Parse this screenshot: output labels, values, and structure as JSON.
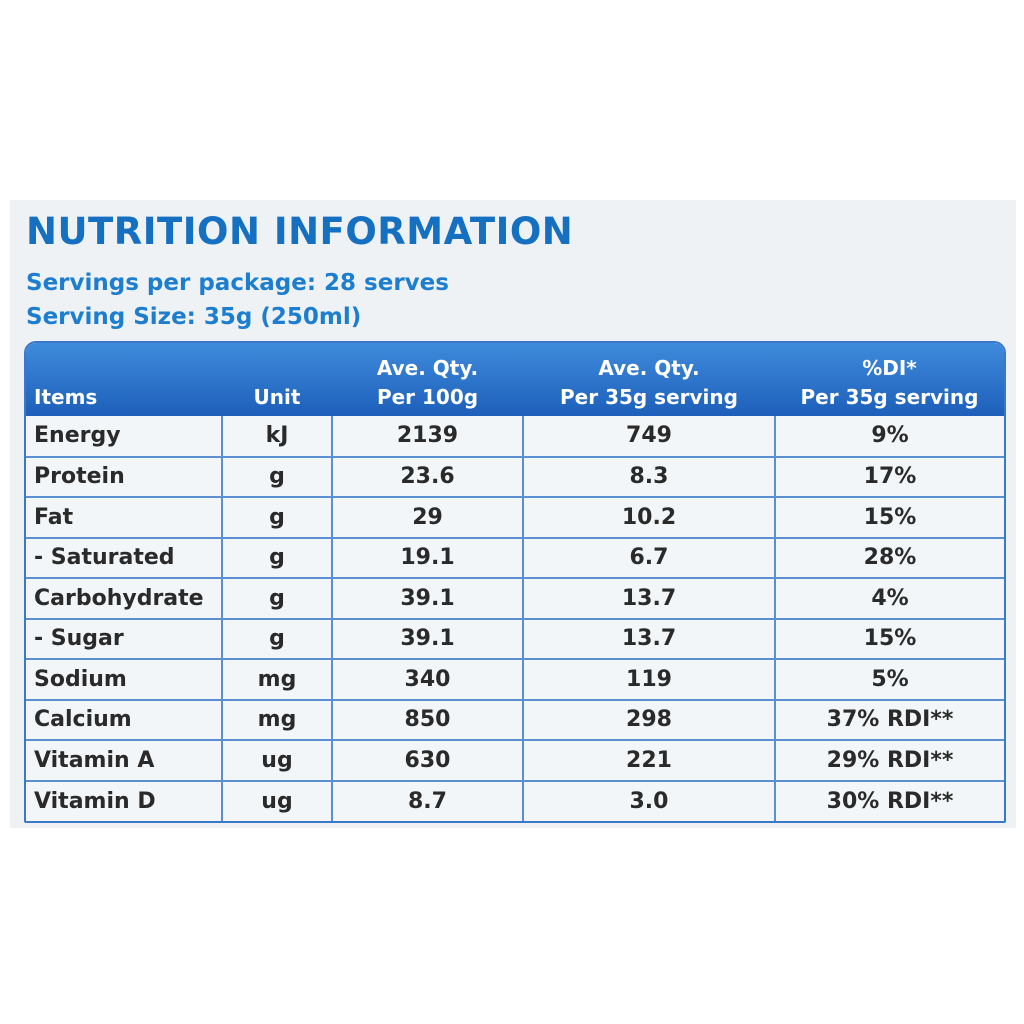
{
  "title": "NUTRITION INFORMATION",
  "servings_per_package": "Servings per package: 28 serves",
  "serving_size": "Serving Size: 35g (250ml)",
  "table": {
    "headers": {
      "items": "Items",
      "unit": "Unit",
      "per100_line1": "Ave. Qty.",
      "per100_line2": "Per 100g",
      "perserv_line1": "Ave. Qty.",
      "perserv_line2": "Per 35g serving",
      "di_line1": "%DI*",
      "di_line2": "Per 35g serving"
    },
    "rows": [
      {
        "item": "Energy",
        "unit": "kJ",
        "per100": "2139",
        "perserv": "749",
        "di": "9%"
      },
      {
        "item": "Protein",
        "unit": "g",
        "per100": "23.6",
        "perserv": "8.3",
        "di": "17%"
      },
      {
        "item": "Fat",
        "unit": "g",
        "per100": "29",
        "perserv": "10.2",
        "di": "15%"
      },
      {
        "item": "- Saturated",
        "unit": "g",
        "per100": "19.1",
        "perserv": "6.7",
        "di": "28%"
      },
      {
        "item": "Carbohydrate",
        "unit": "g",
        "per100": "39.1",
        "perserv": "13.7",
        "di": "4%"
      },
      {
        "item": "- Sugar",
        "unit": "g",
        "per100": "39.1",
        "perserv": "13.7",
        "di": "15%"
      },
      {
        "item": "Sodium",
        "unit": "mg",
        "per100": "340",
        "perserv": "119",
        "di": "5%"
      },
      {
        "item": "Calcium",
        "unit": "mg",
        "per100": "850",
        "perserv": "298",
        "di": "37% RDI**"
      },
      {
        "item": "Vitamin A",
        "unit": "ug",
        "per100": "630",
        "perserv": "221",
        "di": "29% RDI**"
      },
      {
        "item": "Vitamin D",
        "unit": "ug",
        "per100": "8.7",
        "perserv": "3.0",
        "di": "30% RDI**"
      }
    ]
  },
  "colors": {
    "title_blue": "#1570c2",
    "header_blue": "#2a70c8",
    "grid_blue": "#5a8fd0"
  }
}
